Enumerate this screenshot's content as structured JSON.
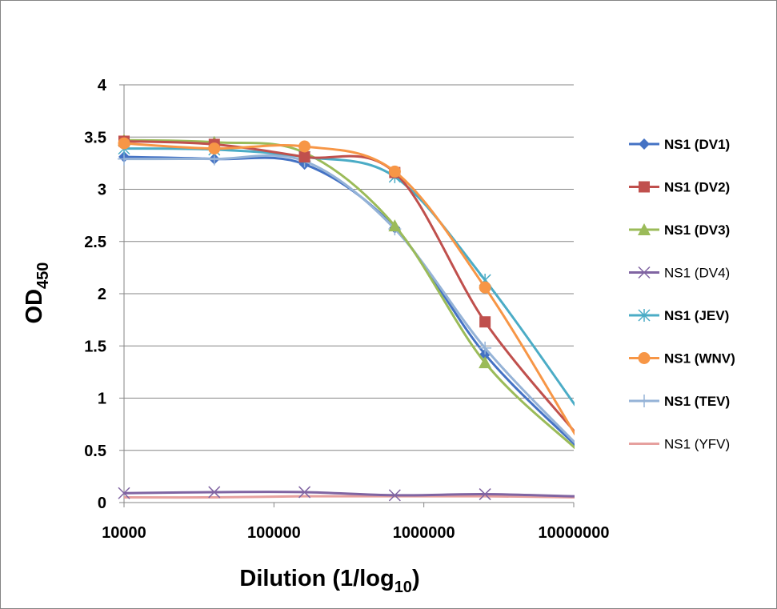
{
  "chart_data": {
    "type": "line",
    "x_scale": "log",
    "xlim": [
      10000,
      10000000
    ],
    "ylim": [
      0,
      4
    ],
    "yticks": [
      0,
      0.5,
      1,
      1.5,
      2,
      2.5,
      3,
      3.5,
      4
    ],
    "ytick_labels": [
      "0",
      "0.5",
      "1",
      "1.5",
      "2",
      "2.5",
      "3",
      "3.5",
      "4"
    ],
    "xticks": [
      10000,
      100000,
      1000000,
      10000000
    ],
    "xtick_labels": [
      "10000",
      "100000",
      "1000000",
      "10000000"
    ],
    "xlabel": {
      "main": "Dilution (1/log",
      "sub": "10",
      "close": ")"
    },
    "ylabel": {
      "main": "OD",
      "sub": "450"
    },
    "grid": "horizontal",
    "legend_position": "right",
    "x": [
      10000,
      40000,
      160000,
      640000,
      2560000,
      10240000
    ],
    "series": [
      {
        "name": "NS1 (DV1)",
        "color": "#4472C4",
        "marker": "diamond",
        "bold": true,
        "values": [
          3.31,
          3.29,
          3.24,
          2.63,
          1.42,
          0.55
        ]
      },
      {
        "name": "NS1 (DV2)",
        "color": "#C0504D",
        "marker": "square",
        "bold": true,
        "values": [
          3.46,
          3.43,
          3.31,
          3.16,
          1.73,
          0.67
        ]
      },
      {
        "name": "NS1 (DV3)",
        "color": "#9BBB59",
        "marker": "triangle",
        "bold": true,
        "values": [
          3.47,
          3.45,
          3.35,
          2.65,
          1.34,
          0.52
        ]
      },
      {
        "name": "NS1 (DV4)",
        "color": "#8064A2",
        "marker": "x",
        "bold": false,
        "values": [
          0.09,
          0.1,
          0.1,
          0.07,
          0.08,
          0.06
        ]
      },
      {
        "name": "NS1 (JEV)",
        "color": "#4BACC6",
        "marker": "asterisk",
        "bold": true,
        "values": [
          3.39,
          3.38,
          3.31,
          3.12,
          2.13,
          0.93
        ]
      },
      {
        "name": "NS1 (WNV)",
        "color": "#F79646",
        "marker": "circle",
        "bold": true,
        "values": [
          3.44,
          3.39,
          3.41,
          3.17,
          2.06,
          0.65
        ]
      },
      {
        "name": "NS1 (TEV)",
        "color": "#95B3D7",
        "marker": "plus",
        "bold": true,
        "values": [
          3.29,
          3.29,
          3.27,
          2.62,
          1.48,
          0.57
        ]
      },
      {
        "name": "NS1 (YFV)",
        "color": "#E6A09E",
        "marker": "none",
        "bold": false,
        "values": [
          0.05,
          0.05,
          0.06,
          0.06,
          0.06,
          0.05
        ]
      }
    ]
  }
}
